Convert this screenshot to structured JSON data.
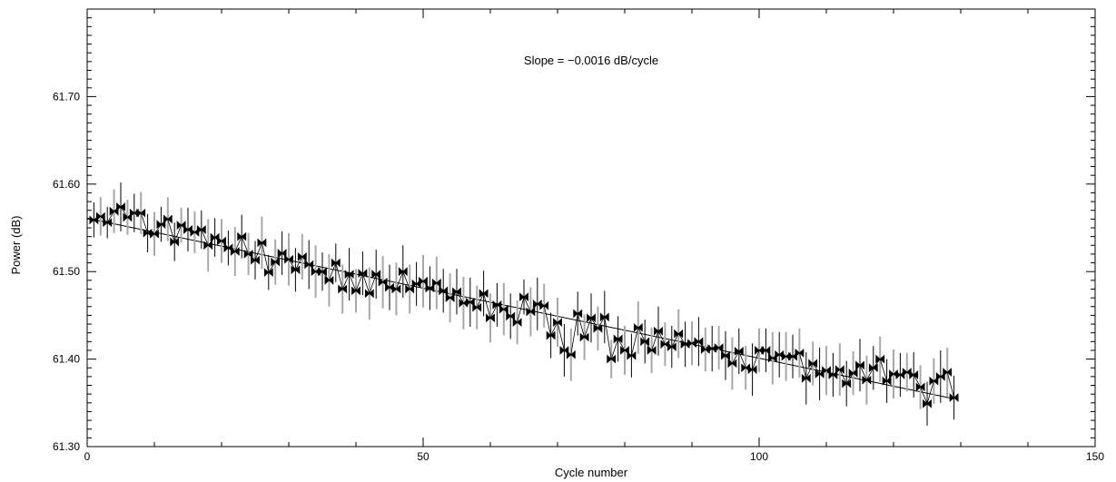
{
  "chart_data": {
    "type": "scatter",
    "title": "",
    "xlabel": "Cycle number",
    "ylabel": "Power   (dB)",
    "xlim": [
      0,
      150
    ],
    "ylim": [
      61.3,
      61.8
    ],
    "x_ticks": [
      0,
      50,
      100,
      150
    ],
    "x_tick_labels": [
      "0",
      "50",
      "100",
      "150"
    ],
    "y_ticks": [
      61.3,
      61.4,
      61.5,
      61.6,
      61.7
    ],
    "y_tick_labels": [
      "61.30",
      "61.40",
      "61.50",
      "61.60",
      "61.70"
    ],
    "grid": false,
    "annotation": "Slope = −0.0016 dB/cycle",
    "marker": "filled-bowtie",
    "line_connect": true,
    "fit_line": {
      "slope": -0.0016,
      "intercept": 61.561,
      "x_range": [
        0,
        129
      ]
    },
    "error_bar_colors": [
      "#000000",
      "#a8a8a8"
    ],
    "x": [
      1,
      2,
      3,
      4,
      5,
      6,
      7,
      8,
      9,
      10,
      11,
      12,
      13,
      14,
      15,
      16,
      17,
      18,
      19,
      20,
      21,
      22,
      23,
      24,
      25,
      26,
      27,
      28,
      29,
      30,
      31,
      32,
      33,
      34,
      35,
      36,
      37,
      38,
      39,
      40,
      41,
      42,
      43,
      44,
      45,
      46,
      47,
      48,
      49,
      50,
      51,
      52,
      53,
      54,
      55,
      56,
      57,
      58,
      59,
      60,
      61,
      62,
      63,
      64,
      65,
      66,
      67,
      68,
      69,
      70,
      71,
      72,
      73,
      74,
      75,
      76,
      77,
      78,
      79,
      80,
      81,
      82,
      83,
      84,
      85,
      86,
      87,
      88,
      89,
      90,
      91,
      92,
      93,
      94,
      95,
      96,
      97,
      98,
      99,
      100,
      101,
      102,
      103,
      104,
      105,
      106,
      107,
      108,
      109,
      110,
      111,
      112,
      113,
      114,
      115,
      116,
      117,
      118,
      119,
      120,
      121,
      122,
      123,
      124,
      125,
      126,
      127,
      128,
      129
    ],
    "y": [
      61.559,
      61.563,
      61.556,
      61.569,
      61.574,
      61.562,
      61.567,
      61.567,
      61.544,
      61.543,
      61.554,
      61.56,
      61.534,
      61.553,
      61.548,
      61.545,
      61.548,
      61.53,
      61.539,
      61.535,
      61.527,
      61.523,
      61.54,
      61.52,
      61.513,
      61.533,
      61.499,
      61.511,
      61.521,
      61.514,
      61.502,
      61.517,
      61.508,
      61.5,
      61.5,
      61.49,
      61.51,
      61.48,
      61.497,
      61.478,
      61.498,
      61.475,
      61.497,
      61.488,
      61.482,
      61.48,
      61.5,
      61.48,
      61.486,
      61.489,
      61.481,
      61.487,
      61.478,
      61.47,
      61.477,
      61.464,
      61.465,
      61.459,
      61.475,
      61.447,
      61.462,
      61.457,
      61.449,
      61.442,
      61.471,
      61.454,
      61.463,
      61.461,
      61.427,
      61.442,
      61.41,
      61.405,
      61.452,
      61.425,
      61.447,
      61.435,
      61.448,
      61.4,
      61.423,
      61.41,
      61.404,
      61.436,
      61.42,
      61.41,
      61.432,
      61.417,
      61.414,
      61.429,
      61.417,
      61.418,
      61.42,
      61.411,
      61.412,
      61.413,
      61.404,
      61.395,
      61.409,
      61.39,
      61.388,
      61.41,
      61.41,
      61.401,
      61.405,
      61.403,
      61.403,
      61.407,
      61.378,
      61.395,
      61.383,
      61.387,
      61.382,
      61.388,
      61.372,
      61.384,
      61.393,
      61.376,
      61.39,
      61.4,
      61.375,
      61.383,
      61.382,
      61.385,
      61.382,
      61.368,
      61.349,
      61.375,
      61.38,
      61.385,
      61.356
    ],
    "yerr": [
      0.02,
      0.022,
      0.018,
      0.025,
      0.028,
      0.02,
      0.022,
      0.024,
      0.022,
      0.025,
      0.02,
      0.025,
      0.022,
      0.02,
      0.025,
      0.024,
      0.022,
      0.03,
      0.022,
      0.025,
      0.02,
      0.028,
      0.025,
      0.024,
      0.022,
      0.03,
      0.02,
      0.026,
      0.025,
      0.03,
      0.025,
      0.026,
      0.028,
      0.03,
      0.022,
      0.03,
      0.022,
      0.028,
      0.03,
      0.025,
      0.025,
      0.03,
      0.028,
      0.03,
      0.026,
      0.03,
      0.03,
      0.028,
      0.025,
      0.03,
      0.025,
      0.03,
      0.025,
      0.028,
      0.026,
      0.03,
      0.028,
      0.025,
      0.026,
      0.028,
      0.025,
      0.03,
      0.026,
      0.025,
      0.02,
      0.028,
      0.03,
      0.025,
      0.026,
      0.028,
      0.03,
      0.03,
      0.025,
      0.026,
      0.028,
      0.025,
      0.03,
      0.022,
      0.026,
      0.028,
      0.025,
      0.03,
      0.025,
      0.026,
      0.028,
      0.025,
      0.024,
      0.028,
      0.026,
      0.025,
      0.028,
      0.025,
      0.026,
      0.025,
      0.028,
      0.03,
      0.026,
      0.025,
      0.03,
      0.025,
      0.025,
      0.03,
      0.026,
      0.028,
      0.025,
      0.028,
      0.03,
      0.025,
      0.03,
      0.028,
      0.025,
      0.03,
      0.026,
      0.025,
      0.03,
      0.028,
      0.025,
      0.026,
      0.025,
      0.028,
      0.025,
      0.022,
      0.026,
      0.025,
      0.025,
      0.026,
      0.03,
      0.028,
      0.025
    ]
  }
}
